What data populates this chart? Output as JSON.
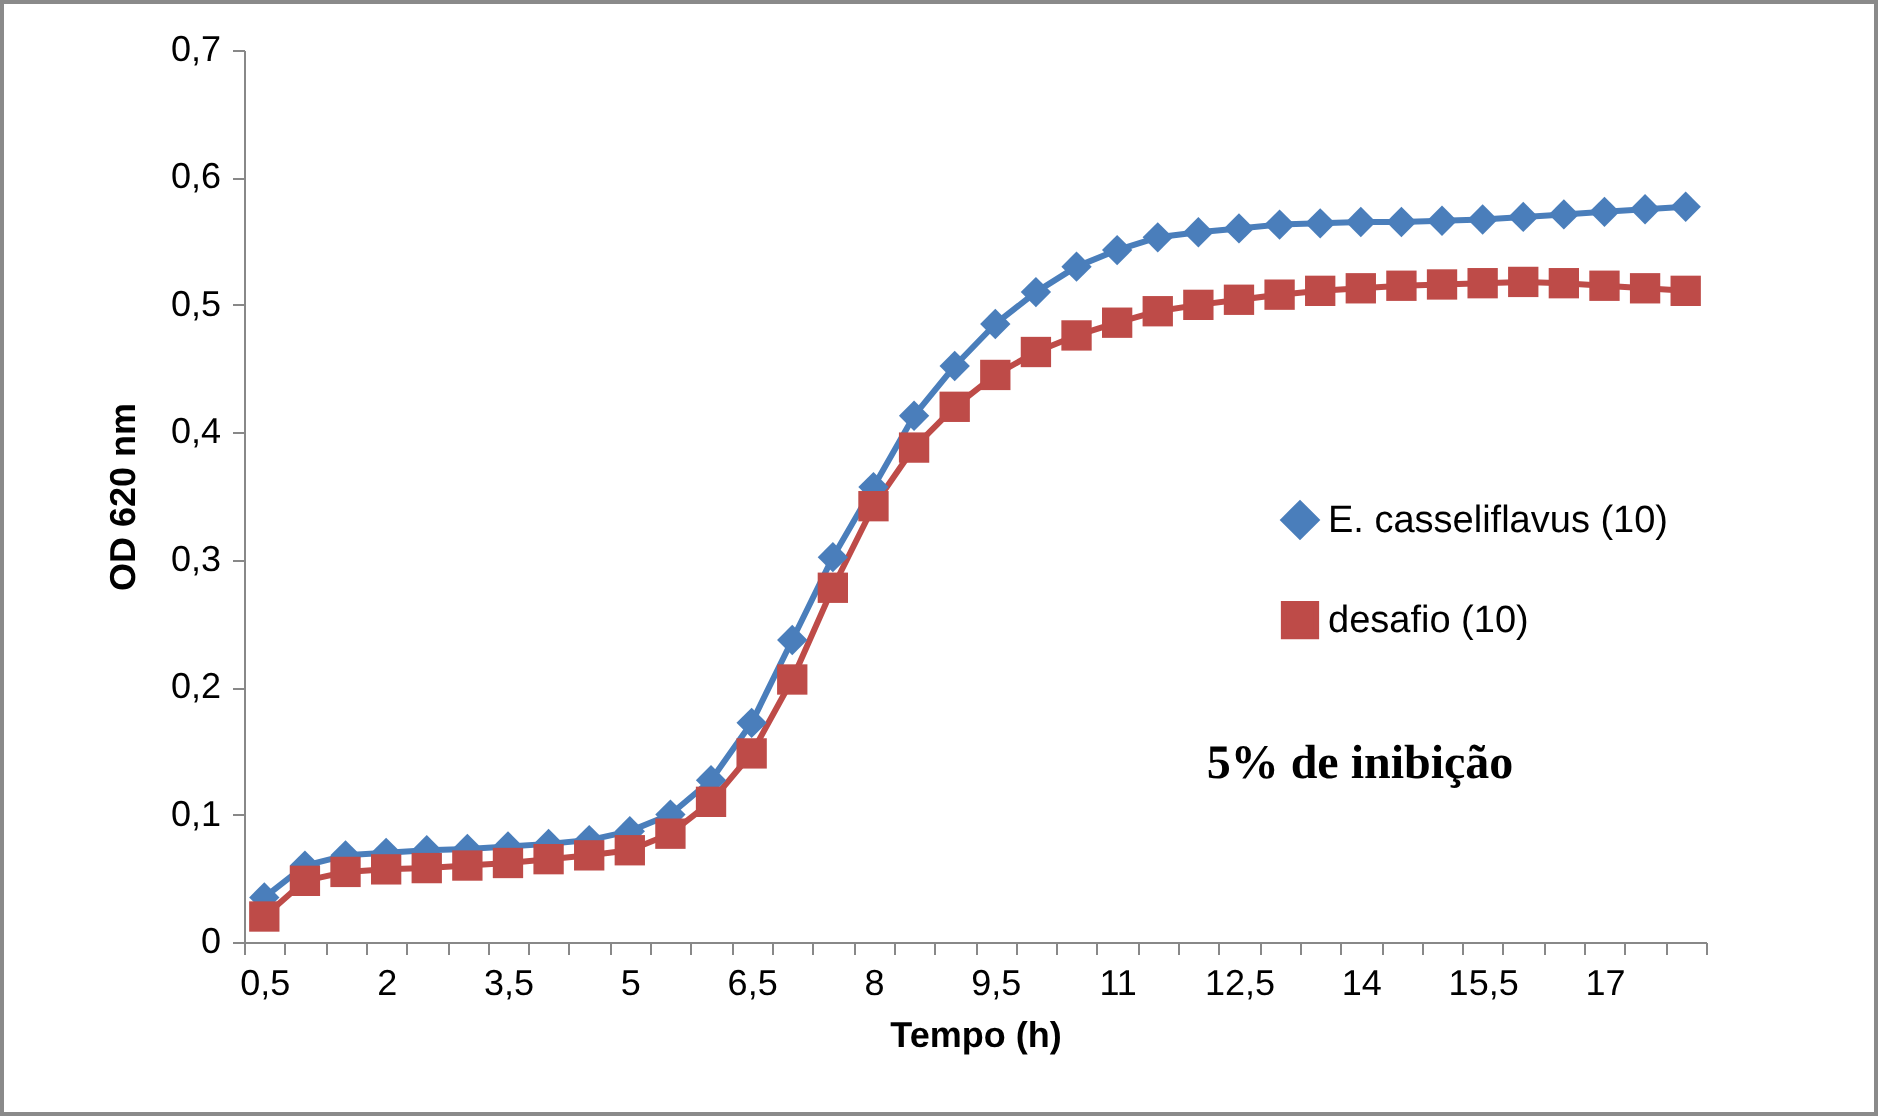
{
  "chart_data": {
    "type": "line",
    "xlabel": "Tempo (h)",
    "ylabel": "OD 620 nm",
    "categories": [
      "0,5",
      null,
      null,
      "2",
      null,
      null,
      "3,5",
      null,
      null,
      "5",
      null,
      null,
      "6,5",
      null,
      null,
      "8",
      null,
      null,
      "9,5",
      null,
      null,
      "11",
      null,
      null,
      "12,5",
      null,
      null,
      "14",
      null,
      null,
      "15,5",
      null,
      null,
      "17",
      null,
      null
    ],
    "series": [
      {
        "name": "E. casseliflavus (10)",
        "color": "#4a7ebb",
        "marker": "diamond",
        "values": [
          0.035,
          0.06,
          0.068,
          0.07,
          0.072,
          0.073,
          0.075,
          0.077,
          0.08,
          0.087,
          0.1,
          0.127,
          0.172,
          0.237,
          0.302,
          0.357,
          0.413,
          0.452,
          0.485,
          0.51,
          0.53,
          0.543,
          0.553,
          0.557,
          0.56,
          0.563,
          0.564,
          0.565,
          0.565,
          0.566,
          0.567,
          0.569,
          0.571,
          0.573,
          0.575,
          0.577
        ]
      },
      {
        "name": "desafio (10)",
        "color": "#be4b48",
        "marker": "square",
        "values": [
          0.02,
          0.048,
          0.055,
          0.057,
          0.058,
          0.06,
          0.062,
          0.065,
          0.068,
          0.072,
          0.085,
          0.11,
          0.148,
          0.206,
          0.278,
          0.342,
          0.388,
          0.42,
          0.445,
          0.463,
          0.476,
          0.486,
          0.495,
          0.5,
          0.504,
          0.508,
          0.511,
          0.513,
          0.515,
          0.516,
          0.517,
          0.518,
          0.517,
          0.515,
          0.513,
          0.511
        ]
      }
    ],
    "ylim": [
      0,
      0.7
    ],
    "yticks": [
      0,
      {
        "value": 0.1,
        "label": "0,1"
      },
      {
        "value": 0.2,
        "label": "0,2"
      },
      {
        "value": 0.3,
        "label": "0,3"
      },
      {
        "value": 0.4,
        "label": "0,4"
      },
      {
        "value": 0.5,
        "label": "0,5"
      },
      {
        "value": 0.6,
        "label": "0,6"
      },
      {
        "value": 0.7,
        "label": "0,7"
      }
    ],
    "grid": false,
    "legend": "right",
    "line_style": "solid",
    "annotations": [
      "5% de inibição"
    ]
  }
}
